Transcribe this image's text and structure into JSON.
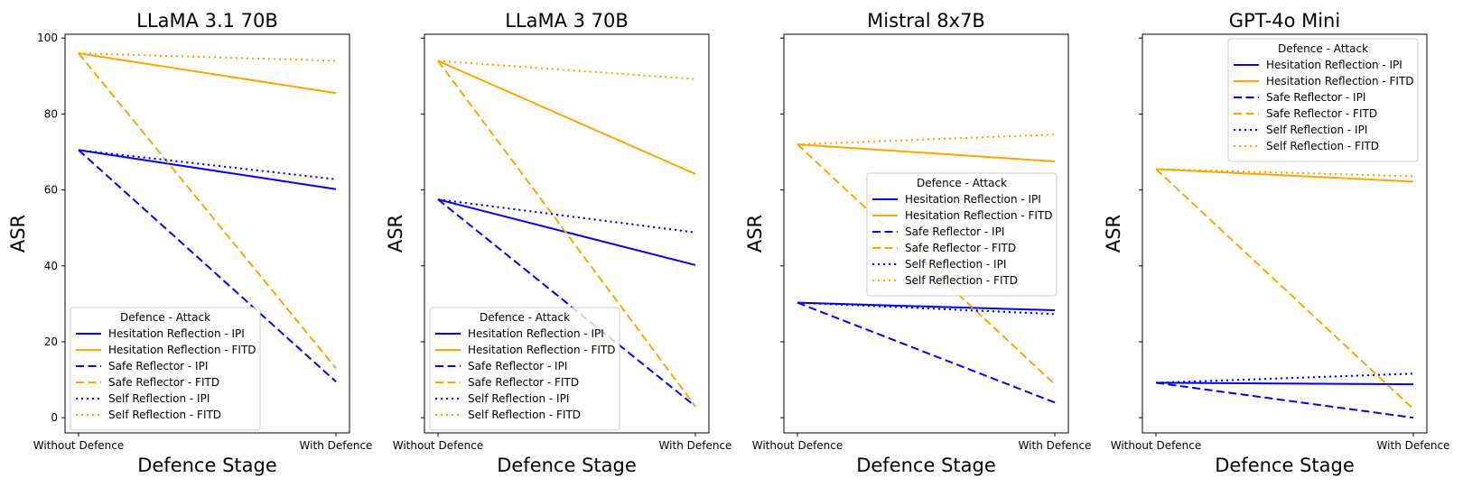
{
  "figure": {
    "shared_ylabel": "ASR",
    "shared_xlabel": "Defence Stage"
  },
  "colors": {
    "IPI": "#0000ff",
    "FITD": "#ffa500"
  },
  "chart_data": [
    {
      "type": "line",
      "title": "LLaMA 3.1 70B",
      "xlabel": "Defence Stage",
      "ylabel": "ASR",
      "categories": [
        "Without Defence",
        "With Defence"
      ],
      "ylim": [
        -4,
        101
      ],
      "yticks": [
        0,
        20,
        40,
        60,
        80,
        100
      ],
      "show_yticklabels": true,
      "grid": false,
      "legend": {
        "title": "Defence - Attack",
        "placement": "lower-left"
      },
      "series": [
        {
          "name": "Hesitation Reflection - IPI",
          "color": "#0000ff",
          "style": "solid",
          "values": [
            70.5,
            60.2
          ]
        },
        {
          "name": "Hesitation Reflection - FITD",
          "color": "#ffa500",
          "style": "solid",
          "values": [
            96.0,
            85.5
          ]
        },
        {
          "name": "Safe Reflector - IPI",
          "color": "#0000ff",
          "style": "dashed",
          "values": [
            70.5,
            9.5
          ]
        },
        {
          "name": "Safe Reflector - FITD",
          "color": "#ffa500",
          "style": "dashed",
          "values": [
            96.0,
            13.0
          ]
        },
        {
          "name": "Self Reflection - IPI",
          "color": "#0000ff",
          "style": "dotted",
          "values": [
            70.5,
            62.8
          ]
        },
        {
          "name": "Self Reflection - FITD",
          "color": "#ffa500",
          "style": "dotted",
          "values": [
            96.0,
            94.0
          ]
        }
      ]
    },
    {
      "type": "line",
      "title": "LLaMA 3 70B",
      "xlabel": "Defence Stage",
      "ylabel": "ASR",
      "categories": [
        "Without Defence",
        "With Defence"
      ],
      "ylim": [
        -4,
        101
      ],
      "yticks": [
        0,
        20,
        40,
        60,
        80,
        100
      ],
      "show_yticklabels": false,
      "grid": false,
      "legend": {
        "title": "Defence - Attack",
        "placement": "lower-left"
      },
      "series": [
        {
          "name": "Hesitation Reflection - IPI",
          "color": "#0000ff",
          "style": "solid",
          "values": [
            57.5,
            40.2
          ]
        },
        {
          "name": "Hesitation Reflection - FITD",
          "color": "#ffa500",
          "style": "solid",
          "values": [
            94.0,
            64.2
          ]
        },
        {
          "name": "Safe Reflector - IPI",
          "color": "#0000ff",
          "style": "dashed",
          "values": [
            57.5,
            3.0
          ]
        },
        {
          "name": "Safe Reflector - FITD",
          "color": "#ffa500",
          "style": "dashed",
          "values": [
            94.0,
            3.0
          ]
        },
        {
          "name": "Self Reflection - IPI",
          "color": "#0000ff",
          "style": "dotted",
          "values": [
            57.5,
            48.8
          ]
        },
        {
          "name": "Self Reflection - FITD",
          "color": "#ffa500",
          "style": "dotted",
          "values": [
            94.0,
            89.2
          ]
        }
      ]
    },
    {
      "type": "line",
      "title": "Mistral 8x7B",
      "xlabel": "Defence Stage",
      "ylabel": "ASR",
      "categories": [
        "Without Defence",
        "With Defence"
      ],
      "ylim": [
        -4,
        101
      ],
      "yticks": [
        0,
        20,
        40,
        60,
        80,
        100
      ],
      "show_yticklabels": false,
      "grid": false,
      "legend": {
        "title": "Defence - Attack",
        "placement": "center-right"
      },
      "series": [
        {
          "name": "Hesitation Reflection - IPI",
          "color": "#0000ff",
          "style": "solid",
          "values": [
            30.3,
            28.3
          ]
        },
        {
          "name": "Hesitation Reflection - FITD",
          "color": "#ffa500",
          "style": "solid",
          "values": [
            72.0,
            67.5
          ]
        },
        {
          "name": "Safe Reflector - IPI",
          "color": "#0000ff",
          "style": "dashed",
          "values": [
            30.3,
            4.0
          ]
        },
        {
          "name": "Safe Reflector - FITD",
          "color": "#ffa500",
          "style": "dashed",
          "values": [
            72.0,
            8.8
          ]
        },
        {
          "name": "Self Reflection - IPI",
          "color": "#0000ff",
          "style": "dotted",
          "values": [
            30.3,
            27.3
          ]
        },
        {
          "name": "Self Reflection - FITD",
          "color": "#ffa500",
          "style": "dotted",
          "values": [
            72.0,
            74.6
          ]
        }
      ]
    },
    {
      "type": "line",
      "title": "GPT-4o Mini",
      "xlabel": "Defence Stage",
      "ylabel": "ASR",
      "categories": [
        "Without Defence",
        "With Defence"
      ],
      "ylim": [
        -4,
        101
      ],
      "yticks": [
        0,
        20,
        40,
        60,
        80,
        100
      ],
      "show_yticklabels": false,
      "grid": false,
      "legend": {
        "title": "Defence - Attack",
        "placement": "upper-right"
      },
      "series": [
        {
          "name": "Hesitation Reflection - IPI",
          "color": "#0000ff",
          "style": "solid",
          "values": [
            9.2,
            8.8
          ]
        },
        {
          "name": "Hesitation Reflection - FITD",
          "color": "#ffa500",
          "style": "solid",
          "values": [
            65.5,
            62.2
          ]
        },
        {
          "name": "Safe Reflector - IPI",
          "color": "#0000ff",
          "style": "dashed",
          "values": [
            9.2,
            0.0
          ]
        },
        {
          "name": "Safe Reflector - FITD",
          "color": "#ffa500",
          "style": "dashed",
          "values": [
            65.5,
            2.3
          ]
        },
        {
          "name": "Self Reflection - IPI",
          "color": "#0000ff",
          "style": "dotted",
          "values": [
            9.2,
            11.6
          ]
        },
        {
          "name": "Self Reflection - FITD",
          "color": "#ffa500",
          "style": "dotted",
          "values": [
            65.5,
            63.6
          ]
        }
      ]
    }
  ]
}
